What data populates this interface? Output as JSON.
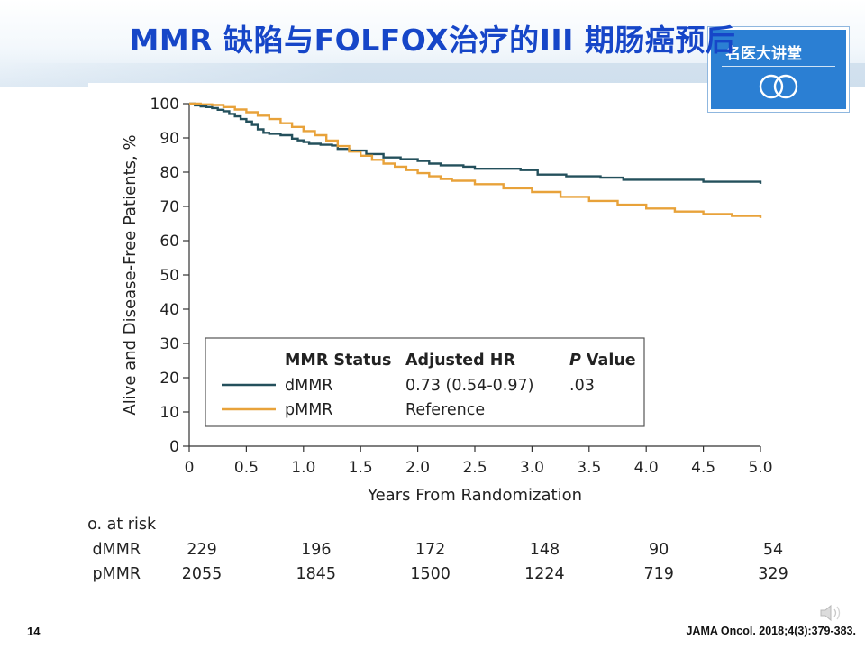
{
  "slide": {
    "title": "MMR 缺陷与FOLFOX治疗的III 期肠癌预后",
    "logo_text": "名医大讲堂",
    "page_number": "14",
    "citation": "JAMA Oncol. 2018;4(3):379-383."
  },
  "chart_data": {
    "type": "line",
    "title": "",
    "xlabel": "Years From Randomization",
    "ylabel": "Alive and Disease-Free Patients, %",
    "xlim": [
      0,
      5
    ],
    "ylim": [
      0,
      100
    ],
    "xticks": [
      0,
      0.5,
      1,
      1.5,
      2,
      2.5,
      3,
      3.5,
      4,
      4.5,
      5
    ],
    "xtick_labels": [
      "0",
      "0.5",
      "1.0",
      "1.5",
      "2.0",
      "2.5",
      "3.0",
      "3.5",
      "4.0",
      "4.5",
      "5.0"
    ],
    "yticks": [
      0,
      10,
      20,
      30,
      40,
      50,
      60,
      70,
      80,
      90,
      100
    ],
    "grid": false,
    "step": true,
    "series": [
      {
        "name": "dMMR",
        "color": "#24505c",
        "points": [
          [
            0,
            100
          ],
          [
            0.05,
            99.5
          ],
          [
            0.1,
            99.2
          ],
          [
            0.15,
            99
          ],
          [
            0.2,
            98.7
          ],
          [
            0.25,
            98.2
          ],
          [
            0.3,
            97.8
          ],
          [
            0.35,
            97
          ],
          [
            0.4,
            96.3
          ],
          [
            0.45,
            95.5
          ],
          [
            0.5,
            94.8
          ],
          [
            0.55,
            93.8
          ],
          [
            0.6,
            92.5
          ],
          [
            0.65,
            91.5
          ],
          [
            0.7,
            91.2
          ],
          [
            0.8,
            90.8
          ],
          [
            0.9,
            89.8
          ],
          [
            0.95,
            89.3
          ],
          [
            1.0,
            88.8
          ],
          [
            1.05,
            88.3
          ],
          [
            1.15,
            88
          ],
          [
            1.25,
            87.8
          ],
          [
            1.3,
            86.8
          ],
          [
            1.4,
            86.3
          ],
          [
            1.55,
            85.3
          ],
          [
            1.7,
            84.3
          ],
          [
            1.85,
            83.8
          ],
          [
            2.0,
            83.3
          ],
          [
            2.1,
            82.5
          ],
          [
            2.2,
            82
          ],
          [
            2.4,
            81.6
          ],
          [
            2.5,
            81
          ],
          [
            2.9,
            80.6
          ],
          [
            3.05,
            79.3
          ],
          [
            3.3,
            78.8
          ],
          [
            3.6,
            78.4
          ],
          [
            3.8,
            77.8
          ],
          [
            4.5,
            77.2
          ],
          [
            5.0,
            76.6
          ]
        ]
      },
      {
        "name": "pMMR",
        "color": "#e8a23a",
        "points": [
          [
            0,
            100
          ],
          [
            0.1,
            99.8
          ],
          [
            0.2,
            99.6
          ],
          [
            0.3,
            99
          ],
          [
            0.4,
            98.3
          ],
          [
            0.5,
            97.5
          ],
          [
            0.6,
            96.5
          ],
          [
            0.7,
            95.5
          ],
          [
            0.8,
            94.3
          ],
          [
            0.9,
            93.2
          ],
          [
            1.0,
            92
          ],
          [
            1.1,
            90.8
          ],
          [
            1.2,
            89.2
          ],
          [
            1.3,
            87.6
          ],
          [
            1.4,
            86
          ],
          [
            1.5,
            84.8
          ],
          [
            1.6,
            83.6
          ],
          [
            1.7,
            82.5
          ],
          [
            1.8,
            81.6
          ],
          [
            1.9,
            80.6
          ],
          [
            2.0,
            79.7
          ],
          [
            2.1,
            78.8
          ],
          [
            2.2,
            78
          ],
          [
            2.3,
            77.5
          ],
          [
            2.5,
            76.5
          ],
          [
            2.75,
            75.3
          ],
          [
            3.0,
            74.2
          ],
          [
            3.25,
            72.8
          ],
          [
            3.5,
            71.6
          ],
          [
            3.75,
            70.5
          ],
          [
            4.0,
            69.4
          ],
          [
            4.25,
            68.5
          ],
          [
            4.5,
            67.8
          ],
          [
            4.75,
            67.2
          ],
          [
            5.0,
            66.6
          ]
        ]
      }
    ],
    "legend": {
      "position": "bottom-center",
      "headers": [
        "MMR Status",
        "Adjusted HR",
        "P Value"
      ],
      "rows": [
        {
          "label": "dMMR",
          "hr": "0.73 (0.54-0.97)",
          "p": ".03"
        },
        {
          "label": "pMMR",
          "hr": "Reference",
          "p": ""
        }
      ]
    },
    "risk_table": {
      "title": "No. at risk",
      "times": [
        0,
        1,
        2,
        3,
        4,
        5
      ],
      "rows": [
        {
          "label": "dMMR",
          "values": [
            "229",
            "196",
            "172",
            "148",
            "90",
            "54"
          ]
        },
        {
          "label": "pMMR",
          "values": [
            "2055",
            "1845",
            "1500",
            "1224",
            "719",
            "329"
          ]
        }
      ]
    }
  }
}
